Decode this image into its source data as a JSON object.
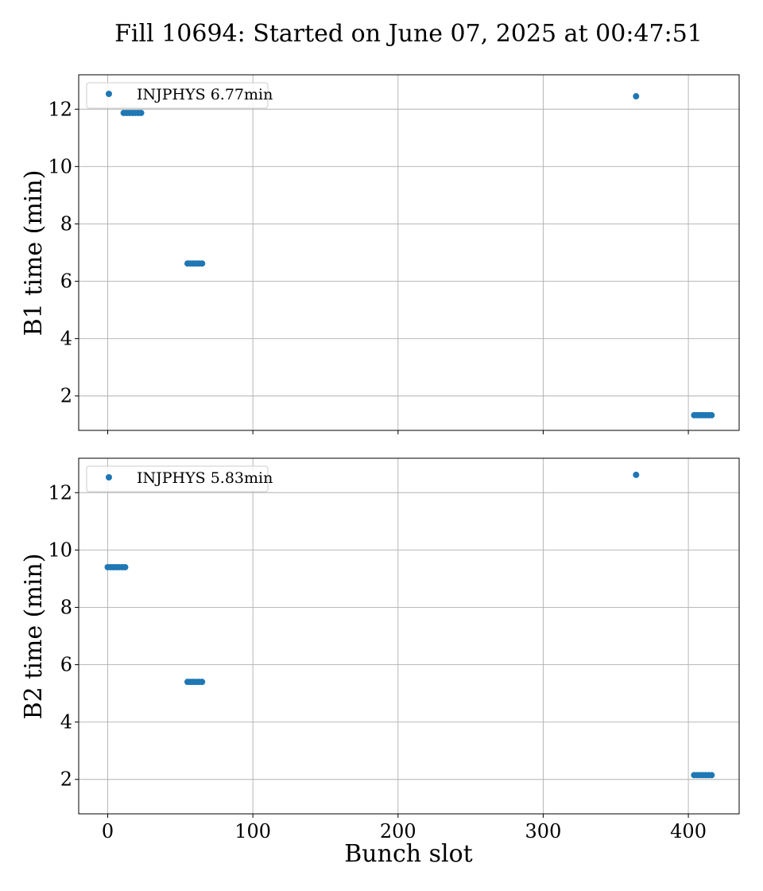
{
  "title": "Fill 10694: Started on June 07, 2025 at 00:47:51",
  "xlabel": "Bunch slot",
  "chart_data": [
    {
      "type": "scatter",
      "ylabel": "B1 time (min)",
      "xlim": [
        -20,
        435
      ],
      "ylim": [
        0.8,
        13.2
      ],
      "xticks": [
        0,
        100,
        200,
        300,
        400
      ],
      "yticks": [
        2,
        4,
        6,
        8,
        10,
        12
      ],
      "grid": true,
      "legend_position": "top-left",
      "color": "#1f77b4",
      "series": [
        {
          "name": "INJPHYS 6.77min",
          "points": [
            [
              11,
              11.87
            ],
            [
              13,
              11.87
            ],
            [
              15,
              11.87
            ],
            [
              17,
              11.87
            ],
            [
              19,
              11.87
            ],
            [
              21,
              11.87
            ],
            [
              23,
              11.87
            ],
            [
              55,
              6.62
            ],
            [
              57,
              6.62
            ],
            [
              59,
              6.62
            ],
            [
              61,
              6.62
            ],
            [
              63,
              6.62
            ],
            [
              65,
              6.62
            ],
            [
              364,
              12.45
            ],
            [
              404,
              1.33
            ],
            [
              406,
              1.33
            ],
            [
              408,
              1.33
            ],
            [
              410,
              1.33
            ],
            [
              412,
              1.33
            ],
            [
              414,
              1.33
            ],
            [
              416,
              1.33
            ]
          ]
        }
      ]
    },
    {
      "type": "scatter",
      "ylabel": "B2 time (min)",
      "xlim": [
        -20,
        435
      ],
      "ylim": [
        0.8,
        13.2
      ],
      "xticks": [
        0,
        100,
        200,
        300,
        400
      ],
      "yticks": [
        2,
        4,
        6,
        8,
        10,
        12
      ],
      "grid": true,
      "legend_position": "top-left",
      "color": "#1f77b4",
      "series": [
        {
          "name": "INJPHYS 5.83min",
          "points": [
            [
              0,
              9.4
            ],
            [
              2,
              9.4
            ],
            [
              4,
              9.4
            ],
            [
              6,
              9.4
            ],
            [
              8,
              9.4
            ],
            [
              10,
              9.4
            ],
            [
              12,
              9.4
            ],
            [
              55,
              5.4
            ],
            [
              57,
              5.4
            ],
            [
              59,
              5.4
            ],
            [
              61,
              5.4
            ],
            [
              63,
              5.4
            ],
            [
              65,
              5.4
            ],
            [
              364,
              12.62
            ],
            [
              404,
              2.15
            ],
            [
              406,
              2.15
            ],
            [
              408,
              2.15
            ],
            [
              410,
              2.15
            ],
            [
              412,
              2.15
            ],
            [
              414,
              2.15
            ],
            [
              416,
              2.15
            ]
          ]
        }
      ]
    }
  ]
}
